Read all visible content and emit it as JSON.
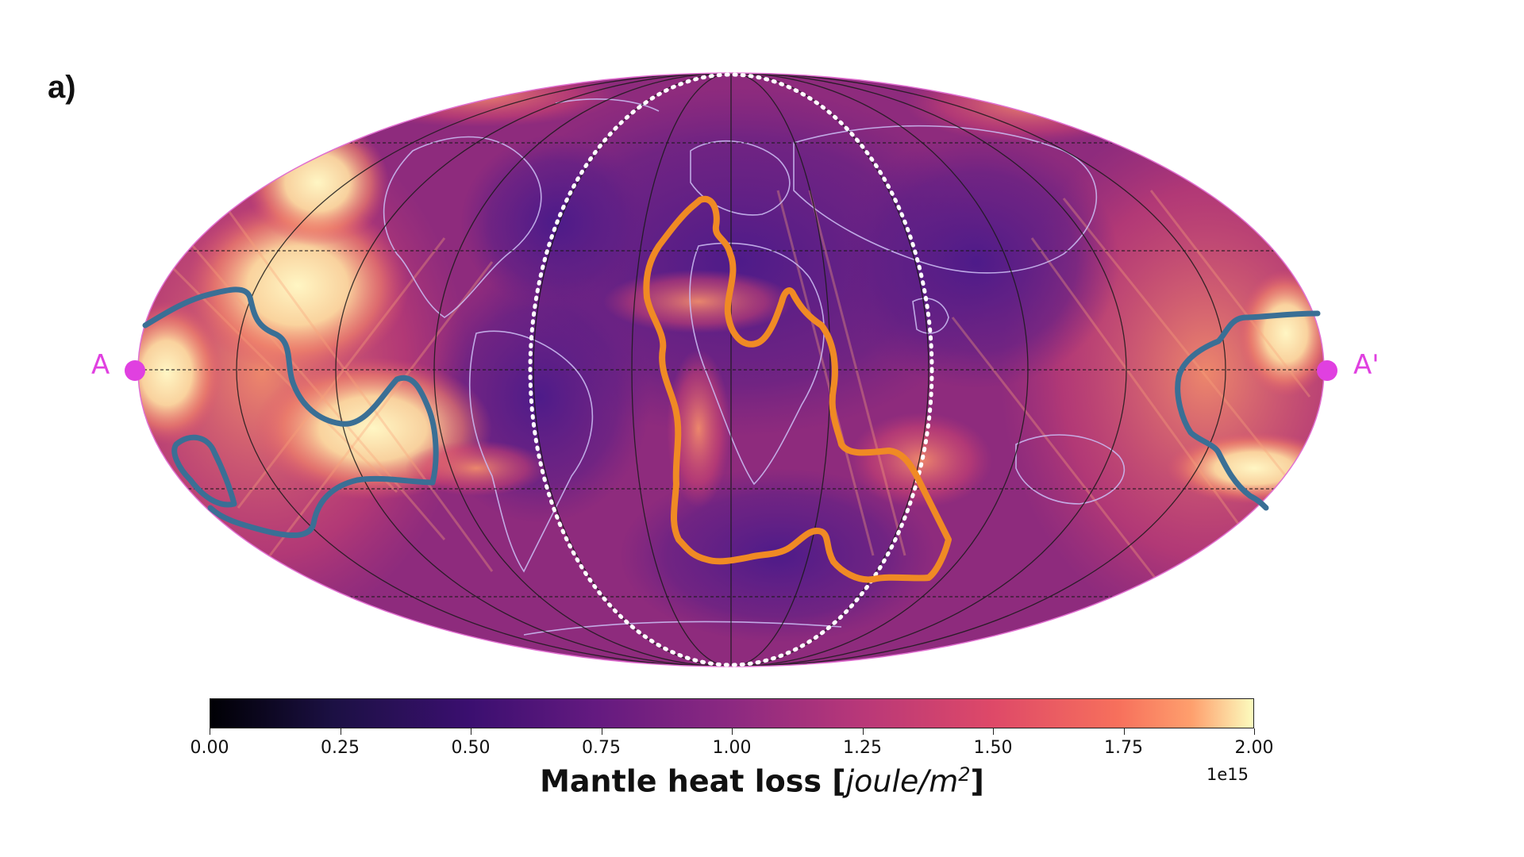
{
  "panel_label": "a)",
  "endpoints": {
    "start": "A",
    "end": "A'"
  },
  "colorbar": {
    "title_prefix": "Mantle heat loss [",
    "unit": "joule/m",
    "unit_exp": "2",
    "title_suffix": "]",
    "multiplier": "1e15",
    "colormap": "magma",
    "min": 0.0,
    "max": 2.0,
    "ticks": [
      "0.00",
      "0.25",
      "0.50",
      "0.75",
      "1.00",
      "1.25",
      "1.50",
      "1.75",
      "2.00"
    ]
  },
  "colors": {
    "blue_contour": "#3a6f95",
    "orange_contour": "#f08a24",
    "endpoint_marker": "#e040e0",
    "coastline": "#c9b8f0",
    "dotted_circle": "#ffffff",
    "graticule": "#1a1a1a"
  },
  "map": {
    "projection": "Mollweide",
    "graticule": true
  }
}
